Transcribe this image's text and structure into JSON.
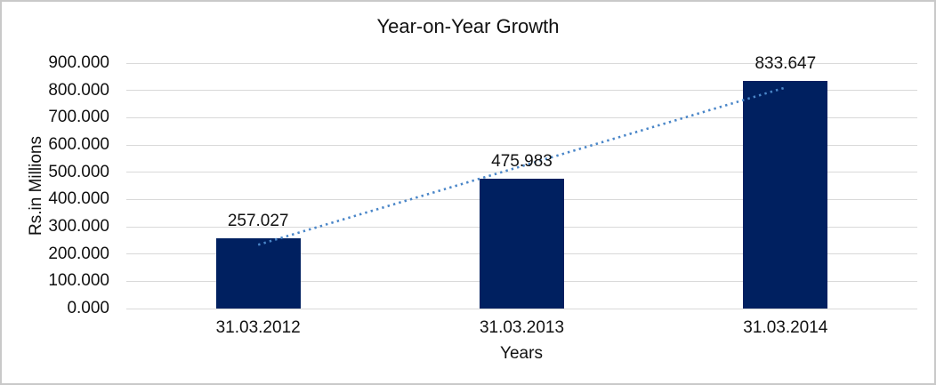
{
  "chart_data": {
    "type": "bar",
    "title": "Year-on-Year Growth",
    "categories": [
      "31.03.2012",
      "31.03.2013",
      "31.03.2014"
    ],
    "values": [
      257.027,
      475.983,
      833.647
    ],
    "data_labels": [
      "257.027",
      "475.983",
      "833.647"
    ],
    "xlabel": "Years",
    "ylabel": "Rs.in Millions",
    "ylim": [
      0,
      900
    ],
    "ytick_values": [
      0,
      100,
      200,
      300,
      400,
      500,
      600,
      700,
      800,
      900
    ],
    "ytick_labels": [
      "0.000",
      "100.000",
      "200.000",
      "300.000",
      "400.000",
      "500.000",
      "600.000",
      "700.000",
      "800.000",
      "900.000"
    ],
    "grid": true,
    "legend": "none",
    "trendline": {
      "type": "linear",
      "style": "dotted",
      "color": "#4a86c8"
    },
    "colors": {
      "bar": "#002060",
      "gridline": "#d9d9d9",
      "text": "#111111",
      "frame_border": "#c9c9c9",
      "background": "#ffffff"
    }
  }
}
